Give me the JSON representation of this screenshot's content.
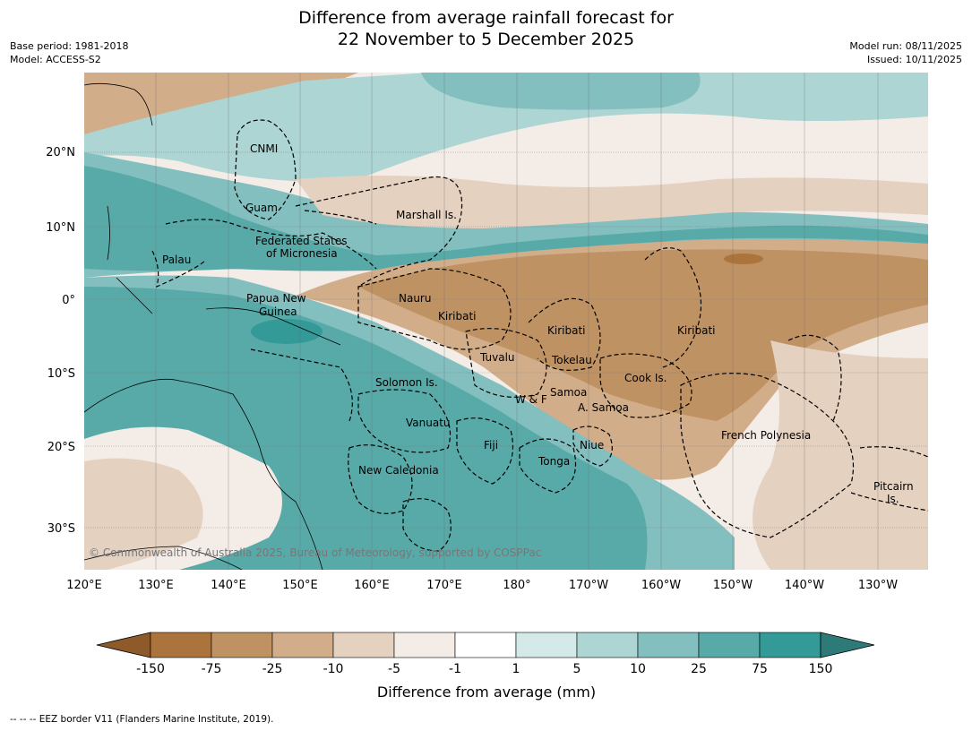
{
  "title_line1": "Difference from average rainfall forecast for",
  "title_line2": "22 November to 5 December 2025",
  "base_period": "Base period: 1981-2018",
  "model": "Model: ACCESS-S2",
  "model_run": "Model run: 08/11/2025",
  "issued": "Issued: 10/11/2025",
  "copyright": "© Commonwealth of Australia 2025, Bureau of Meteorology, supported by COSPPac",
  "footnote": "--  --  -- EEZ border V11 (Flanders Marine Institute, 2019).",
  "lon_ticks": [
    "120°E",
    "130°E",
    "140°E",
    "150°E",
    "160°E",
    "170°E",
    "180°",
    "170°W",
    "160°W",
    "150°W",
    "140°W",
    "130°W"
  ],
  "lat_ticks": [
    "20°N",
    "10°N",
    "0°",
    "10°S",
    "20°S",
    "30°S"
  ],
  "regions": [
    {
      "id": "cnmi",
      "name": "CNMI"
    },
    {
      "id": "guam",
      "name": "Guam"
    },
    {
      "id": "marshall",
      "name": "Marshall Is."
    },
    {
      "id": "fsm1",
      "name": "Federated States"
    },
    {
      "id": "fsm2",
      "name": "of Micronesia"
    },
    {
      "id": "palau",
      "name": "Palau"
    },
    {
      "id": "png1",
      "name": "Papua New"
    },
    {
      "id": "png2",
      "name": "Guinea"
    },
    {
      "id": "nauru",
      "name": "Nauru"
    },
    {
      "id": "kiribati1",
      "name": "Kiribati"
    },
    {
      "id": "kiribati2",
      "name": "Kiribati"
    },
    {
      "id": "kiribati3",
      "name": "Kiribati"
    },
    {
      "id": "tuvalu",
      "name": "Tuvalu"
    },
    {
      "id": "tokelau",
      "name": "Tokelau"
    },
    {
      "id": "cook",
      "name": "Cook Is."
    },
    {
      "id": "solomon",
      "name": "Solomon Is."
    },
    {
      "id": "wf",
      "name": "W & F"
    },
    {
      "id": "samoa",
      "name": "Samoa"
    },
    {
      "id": "asamoa",
      "name": "A. Samoa"
    },
    {
      "id": "vanuatu",
      "name": "Vanuatu"
    },
    {
      "id": "fiji",
      "name": "Fiji"
    },
    {
      "id": "niue",
      "name": "Niue"
    },
    {
      "id": "tonga",
      "name": "Tonga"
    },
    {
      "id": "newcal",
      "name": "New Caledonia"
    },
    {
      "id": "frpoly",
      "name": "French Polynesia"
    },
    {
      "id": "pitcairn1",
      "name": "Pitcairn"
    },
    {
      "id": "pitcairn2",
      "name": "Is."
    }
  ],
  "legend": {
    "label": "Difference from average (mm)",
    "ticks": [
      "-150",
      "-75",
      "-25",
      "-10",
      "-5",
      "-1",
      "1",
      "5",
      "10",
      "25",
      "75",
      "150"
    ],
    "colors": [
      "#8e5a2a",
      "#ab743d",
      "#bf9264",
      "#d2ad8a",
      "#e5d1c0",
      "#f4ece6",
      "#ffffff",
      "#d4eae8",
      "#acd5d4",
      "#83bfbf",
      "#58aaa9",
      "#349a98",
      "#2e7a78"
    ]
  }
}
